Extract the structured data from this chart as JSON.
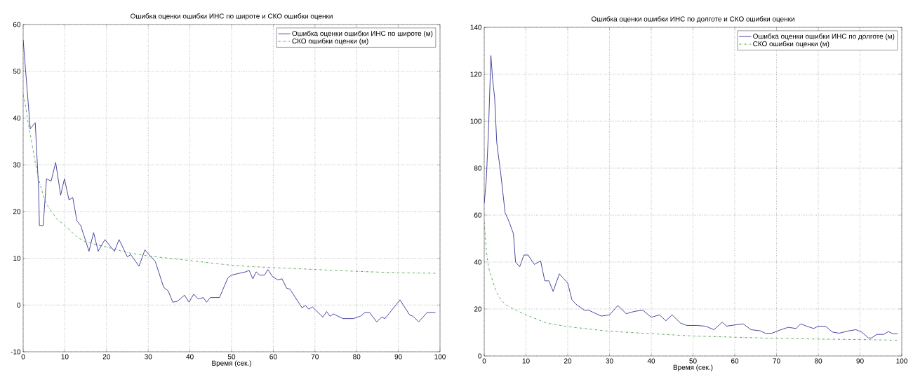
{
  "chart_data": [
    {
      "type": "line",
      "title": "Ошибка оценки ошибки ИНС по широте и СКО ошибки оценки",
      "xlabel": "Время (сек.)",
      "xlim": [
        0,
        100
      ],
      "ylim": [
        -10,
        60
      ],
      "xticks": [
        0,
        10,
        20,
        30,
        40,
        50,
        60,
        70,
        80,
        90,
        100
      ],
      "yticks": [
        -10,
        0,
        10,
        20,
        30,
        40,
        50,
        60
      ],
      "grid": true,
      "legend": "top right",
      "series": [
        {
          "name": "Ошибка оценки ошибки ИНС по широте (м)",
          "color": "#1c1c8a",
          "line_style": "solid",
          "x": [
            0,
            1.7,
            2.9,
            3.7,
            3.9,
            4.8,
            5.6,
            6.7,
            7.8,
            9,
            9.9,
            11,
            11.9,
            12.9,
            13.8,
            15.8,
            16.9,
            18,
            19.6,
            21.9,
            23,
            25,
            25.8,
            27.8,
            29.2,
            31.7,
            33.7,
            34.8,
            35.9,
            37,
            38.7,
            39.8,
            40.9,
            42,
            43.2,
            44,
            44.9,
            47.1,
            49.1,
            50,
            53.4,
            54.2,
            55.1,
            55.9,
            56.7,
            57.9,
            58.7,
            59.8,
            61,
            62.1,
            63.2,
            64,
            66.9,
            67.7,
            68.5,
            69.4,
            71.9,
            72.8,
            73.6,
            74.4,
            76.7,
            79.2,
            80.9,
            82,
            83.1,
            84.8,
            86,
            86.8,
            90.4,
            92.7,
            93.5,
            94.9,
            96.9,
            98.9
          ],
          "values": [
            56.7,
            37.7,
            39,
            25,
            17,
            17,
            27,
            26.5,
            30.5,
            23.5,
            27,
            22.5,
            23,
            18,
            17,
            11.5,
            15.5,
            11.5,
            14,
            11.5,
            14,
            10.3,
            10.8,
            8.3,
            11.8,
            9.3,
            3.8,
            3,
            0.6,
            0.8,
            2.1,
            0.6,
            2.3,
            1.3,
            1.6,
            0.6,
            1.6,
            1.6,
            5.8,
            6.4,
            7.1,
            7.4,
            5.6,
            7.1,
            6.4,
            6.4,
            7.6,
            6.1,
            5.4,
            5.6,
            3.6,
            3.4,
            -0.6,
            -0.1,
            -0.9,
            -0.4,
            -2.6,
            -1.4,
            -2.4,
            -1.9,
            -2.9,
            -2.9,
            -2.4,
            -1.6,
            -1.6,
            -3.6,
            -2.6,
            -2.9,
            1.1,
            -2.1,
            -2.4,
            -3.6,
            -1.6,
            -1.6
          ]
        },
        {
          "name": "СКО ошибки оценки (м)",
          "color": "#2e8b2e",
          "line_style": "dashdot",
          "x": [
            0,
            0.5,
            1,
            2,
            3,
            4,
            5,
            6,
            8,
            10,
            13,
            15,
            20,
            25,
            30,
            35,
            40,
            45,
            50,
            55,
            60,
            70,
            80,
            90,
            99
          ],
          "values": [
            45,
            43,
            40,
            35,
            30,
            26,
            23,
            21,
            18.5,
            17,
            14.5,
            13.5,
            12.4,
            11.2,
            10.5,
            10,
            9.5,
            9,
            8.5,
            8.2,
            8,
            7.6,
            7.2,
            6.9,
            6.8
          ]
        }
      ]
    },
    {
      "type": "line",
      "title": "Ошибка оценки ошибки ИНС по долготе и СКО ошибки оценки",
      "xlabel": "Время (сек.)",
      "xlim": [
        0,
        100
      ],
      "ylim": [
        0,
        140
      ],
      "xticks": [
        0,
        10,
        20,
        30,
        40,
        50,
        60,
        70,
        80,
        90,
        100
      ],
      "yticks": [
        0,
        20,
        40,
        60,
        80,
        100,
        120,
        140
      ],
      "grid": true,
      "legend": "top right",
      "series": [
        {
          "name": "Ошибка оценки ошибки ИНС по долготе (м)",
          "color": "#1c1c8a",
          "line_style": "solid",
          "x": [
            0,
            0.5,
            1,
            1.6,
            2,
            2.5,
            3,
            4,
            5,
            6,
            7,
            7.5,
            8.5,
            9.5,
            10.5,
            12,
            13.5,
            14.5,
            15.5,
            16.5,
            18,
            19,
            20,
            21,
            22,
            24,
            25,
            28,
            30,
            32,
            34,
            36,
            38,
            40,
            42,
            43.5,
            45,
            47,
            48.5,
            50.8,
            53,
            55,
            57,
            58,
            60,
            62,
            63.9,
            66.1,
            67.3,
            68.9,
            71.1,
            72.8,
            74.7,
            75.8,
            77.2,
            78.9,
            80,
            81.7,
            83.4,
            85,
            87.3,
            89,
            90.4,
            92,
            92.8,
            94,
            95.7,
            96.8,
            97.9,
            99
          ],
          "values": [
            65,
            75,
            95,
            128,
            118,
            110,
            91,
            77,
            61,
            57,
            52,
            40,
            38,
            43,
            43,
            39,
            40.5,
            32,
            32,
            27.5,
            35,
            33,
            31,
            24,
            22,
            19.5,
            19.5,
            17,
            17.5,
            21.5,
            18,
            19,
            19.5,
            16.5,
            17.5,
            15,
            17.5,
            14,
            13,
            13,
            12.7,
            11.2,
            14.4,
            12.7,
            13.2,
            13.7,
            11.2,
            10.7,
            9.7,
            9.7,
            11.2,
            12.2,
            11.7,
            13.7,
            12.7,
            11.7,
            12.7,
            12.7,
            10.2,
            9.7,
            10.7,
            11.2,
            10.2,
            7.7,
            7.7,
            9.2,
            9.2,
            10.4,
            9.4,
            9.4
          ]
        },
        {
          "name": "СКО ошибки оценки (м)",
          "color": "#2e8b2e",
          "line_style": "dashdot",
          "x": [
            0,
            0.5,
            1,
            2,
            3,
            4,
            5,
            7,
            10,
            15,
            20,
            25,
            30,
            40,
            50,
            60,
            70,
            80,
            90,
            99
          ],
          "values": [
            57,
            45,
            38,
            32,
            27,
            24,
            22,
            20,
            17.5,
            14,
            12.5,
            11.5,
            10.5,
            9.5,
            8.5,
            8,
            7.5,
            7.2,
            7,
            6.7
          ]
        }
      ]
    }
  ]
}
